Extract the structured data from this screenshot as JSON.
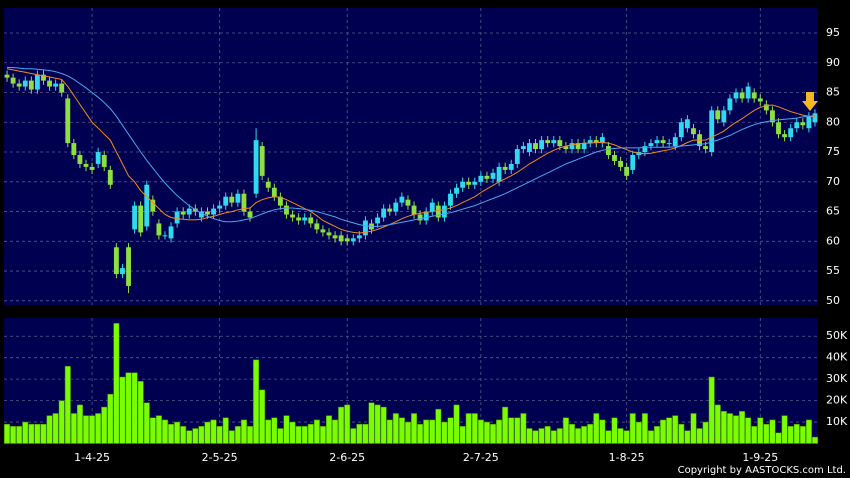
{
  "chart_data": [
    {
      "type": "candlestick",
      "xlim": [
        -0.5,
        133.5
      ],
      "ylim": [
        49.3,
        99.2
      ],
      "yticks": [
        50,
        55,
        60,
        65,
        70,
        75,
        80,
        85,
        90,
        95
      ],
      "grid": true,
      "up_color": "#30d8f0",
      "down_color": "#8ee040",
      "values": [
        [
          88,
          88.7,
          86.8,
          87.5
        ],
        [
          87.5,
          88.2,
          85.8,
          86.5
        ],
        [
          86.5,
          87.2,
          85.3,
          86
        ],
        [
          86,
          87.7,
          85.3,
          87
        ],
        [
          87,
          87.7,
          84.8,
          85.5
        ],
        [
          85.5,
          88.7,
          84.8,
          88
        ],
        [
          88,
          88.7,
          86.3,
          87
        ],
        [
          87,
          87.7,
          85.3,
          86
        ],
        [
          86,
          87.2,
          85.3,
          86.5
        ],
        [
          86.5,
          87.2,
          84.3,
          85
        ],
        [
          84,
          84.7,
          75.8,
          76.5
        ],
        [
          76.5,
          77.2,
          73.8,
          74.5
        ],
        [
          74.5,
          75.2,
          72.3,
          73
        ],
        [
          73,
          73.7,
          71.8,
          72.5
        ],
        [
          72.5,
          73.2,
          71.3,
          72
        ],
        [
          73,
          75.7,
          72.3,
          75
        ],
        [
          74.5,
          75.2,
          71.8,
          72.5
        ],
        [
          72,
          72.7,
          68.8,
          69.5
        ],
        [
          59,
          59.7,
          53.8,
          54.5
        ],
        [
          54.5,
          56.2,
          53.8,
          55.5
        ],
        [
          59,
          59.7,
          51.3,
          52.5
        ],
        [
          62,
          66.7,
          61.3,
          66
        ],
        [
          66,
          66.7,
          60.8,
          61.5
        ],
        [
          62.5,
          70.2,
          61.8,
          69.5
        ],
        [
          67,
          67.7,
          64.3,
          65
        ],
        [
          63,
          63.7,
          60.3,
          61
        ],
        [
          61,
          61.7,
          60.3,
          61
        ],
        [
          60.5,
          63.2,
          59.8,
          62.5
        ],
        [
          63,
          65.7,
          62.3,
          65
        ],
        [
          65,
          65.7,
          63.8,
          64.5
        ],
        [
          64.5,
          66.2,
          63.8,
          65.5
        ],
        [
          65.5,
          66.2,
          64.3,
          65
        ],
        [
          64,
          65.7,
          63.3,
          65
        ],
        [
          65,
          65.7,
          63.8,
          64.5
        ],
        [
          64.5,
          66.2,
          63.8,
          65.5
        ],
        [
          65.5,
          66.7,
          64.8,
          66
        ],
        [
          66,
          68.2,
          65.3,
          67.5
        ],
        [
          67.5,
          68.2,
          65.8,
          66.5
        ],
        [
          66.5,
          68.7,
          65.8,
          68
        ],
        [
          68,
          68.7,
          64.3,
          65
        ],
        [
          65,
          65.7,
          63.3,
          64
        ],
        [
          68,
          79,
          67.3,
          77
        ],
        [
          76,
          76.7,
          70.3,
          71
        ],
        [
          70,
          70.7,
          68.3,
          69
        ],
        [
          69,
          69.7,
          66.8,
          67.5
        ],
        [
          67.5,
          68.2,
          65.3,
          66
        ],
        [
          66,
          66.7,
          63.8,
          64.5
        ],
        [
          64.5,
          65.2,
          63.3,
          64
        ],
        [
          64,
          64.7,
          62.8,
          63.5
        ],
        [
          63.5,
          64.7,
          62.8,
          64
        ],
        [
          64,
          64.7,
          62.3,
          63
        ],
        [
          63,
          63.7,
          61.3,
          62
        ],
        [
          62,
          62.7,
          60.8,
          61.5
        ],
        [
          61.5,
          62.2,
          60.3,
          61
        ],
        [
          61,
          61.7,
          59.8,
          60.5
        ],
        [
          61,
          61.7,
          59.3,
          60
        ],
        [
          60.5,
          61.2,
          59.3,
          60
        ],
        [
          60,
          61.2,
          59.3,
          60.5
        ],
        [
          60.5,
          61.7,
          59.8,
          61
        ],
        [
          61,
          64.2,
          60.3,
          63.5
        ],
        [
          63,
          63.7,
          61.3,
          62
        ],
        [
          63,
          64.7,
          62.3,
          64
        ],
        [
          64,
          66.2,
          63.3,
          65.5
        ],
        [
          65.5,
          66.2,
          64.3,
          65
        ],
        [
          65,
          67.2,
          64.3,
          66.5
        ],
        [
          66.5,
          68.2,
          65.8,
          67.5
        ],
        [
          67,
          67.7,
          65.3,
          66
        ],
        [
          66,
          66.7,
          63.8,
          64.5
        ],
        [
          64.5,
          65.2,
          62.8,
          63.5
        ],
        [
          63.5,
          65.7,
          62.8,
          65
        ],
        [
          65,
          67.2,
          64.3,
          66.5
        ],
        [
          66,
          66.7,
          63.3,
          64
        ],
        [
          64,
          66.7,
          63.3,
          66
        ],
        [
          66,
          68.7,
          65.3,
          68
        ],
        [
          68,
          69.7,
          67.3,
          69
        ],
        [
          69,
          70.7,
          68.3,
          70
        ],
        [
          70,
          70.7,
          68.8,
          69.5
        ],
        [
          69.5,
          70.7,
          68.8,
          70
        ],
        [
          70,
          71.7,
          69.3,
          71
        ],
        [
          71,
          71.7,
          69.8,
          70.5
        ],
        [
          70.5,
          72.2,
          69.8,
          71.5
        ],
        [
          70,
          73.2,
          69.3,
          72.5
        ],
        [
          72.5,
          73.2,
          71.3,
          72
        ],
        [
          72,
          73.7,
          71.3,
          73
        ],
        [
          73,
          76.2,
          72.3,
          75.5
        ],
        [
          75.5,
          76.7,
          74.8,
          76
        ],
        [
          75,
          77.2,
          74.3,
          76.5
        ],
        [
          76.5,
          77.2,
          74.8,
          75.5
        ],
        [
          75.5,
          77.7,
          74.8,
          77
        ],
        [
          77,
          77.7,
          75.8,
          76.5
        ],
        [
          76.5,
          77.7,
          75.8,
          77
        ],
        [
          77,
          77.7,
          75.3,
          76
        ],
        [
          76,
          76.7,
          74.8,
          75.5
        ],
        [
          75.5,
          77.2,
          74.8,
          76.5
        ],
        [
          76.5,
          77.2,
          74.8,
          75.5
        ],
        [
          75.5,
          77.2,
          74.8,
          76.5
        ],
        [
          76.5,
          77.7,
          75.8,
          77
        ],
        [
          77,
          77.7,
          75.8,
          76.5
        ],
        [
          76.5,
          78.2,
          75.8,
          77.5
        ],
        [
          76,
          76.7,
          73.8,
          74.5
        ],
        [
          74.5,
          75.2,
          72.8,
          73.5
        ],
        [
          73.5,
          74.2,
          71.8,
          72.5
        ],
        [
          72.5,
          73.2,
          70.3,
          71
        ],
        [
          72,
          75.2,
          71.3,
          74.5
        ],
        [
          74.5,
          75.7,
          73.8,
          75
        ],
        [
          75,
          76.7,
          74.3,
          76
        ],
        [
          76,
          77.2,
          75.3,
          76.5
        ],
        [
          76.5,
          77.7,
          75.8,
          77
        ],
        [
          77,
          77.7,
          75.8,
          76.5
        ],
        [
          76.5,
          77.2,
          75.8,
          76.5
        ],
        [
          76,
          78.2,
          75.3,
          77.5
        ],
        [
          77.5,
          80.7,
          76.8,
          80
        ],
        [
          79,
          81.2,
          78.3,
          80.5
        ],
        [
          79,
          79.7,
          77.3,
          78
        ],
        [
          78,
          78.7,
          75.3,
          76
        ],
        [
          76,
          76.7,
          74.8,
          75.5
        ],
        [
          75,
          82.7,
          74.3,
          82
        ],
        [
          82,
          82.7,
          79.8,
          80.5
        ],
        [
          80,
          82.7,
          79.3,
          82
        ],
        [
          82,
          84.7,
          81.3,
          84
        ],
        [
          84,
          85.7,
          83.3,
          85
        ],
        [
          85,
          85.7,
          83.3,
          84
        ],
        [
          84,
          86.7,
          83.3,
          86
        ],
        [
          85,
          85.7,
          83.3,
          84
        ],
        [
          84,
          84.7,
          82.8,
          83.5
        ],
        [
          83,
          83.7,
          81.3,
          82
        ],
        [
          82,
          82.7,
          79.3,
          80
        ],
        [
          80,
          80.7,
          77.3,
          78
        ],
        [
          78,
          78.7,
          76.8,
          77.5
        ],
        [
          77.5,
          79.7,
          76.8,
          79
        ],
        [
          79,
          80.7,
          78.3,
          80
        ],
        [
          80,
          80.7,
          78.8,
          79.5
        ],
        [
          79,
          81.7,
          78.3,
          81
        ],
        [
          80,
          82.2,
          79.3,
          81.5
        ]
      ],
      "lines": [
        {
          "color": "#f08a24",
          "values": [
            89,
            88.8,
            88.6,
            88.4,
            88.2,
            88,
            87.8,
            87.6,
            87.4,
            87.2,
            86,
            84.5,
            83,
            81.5,
            80,
            79,
            78,
            77,
            75,
            73,
            71,
            70,
            68.5,
            67.5,
            66.5,
            65.5,
            64.5,
            64,
            63.8,
            63.7,
            63.6,
            63.6,
            63.7,
            64,
            64.2,
            64.5,
            64.8,
            65,
            65.3,
            65.5,
            65.6,
            66.5,
            67,
            67.3,
            67.5,
            67.4,
            67,
            66.5,
            66,
            65.5,
            65,
            64.3,
            63.5,
            63,
            62.5,
            62,
            61.7,
            61.5,
            61.4,
            61.5,
            61.7,
            62,
            62.4,
            62.8,
            63.3,
            63.8,
            64.2,
            64.5,
            64.7,
            64.9,
            65,
            65.2,
            65.3,
            65.6,
            66,
            66.5,
            67,
            67.5,
            68.2,
            68.8,
            69.4,
            70,
            70.5,
            71,
            71.6,
            72.3,
            73,
            73.6,
            74.2,
            74.8,
            75.3,
            75.7,
            76,
            76.2,
            76.4,
            76.5,
            76.5,
            76.6,
            76.6,
            76.5,
            76.2,
            75.8,
            75.4,
            75,
            74.8,
            74.7,
            74.8,
            75,
            75.2,
            75.4,
            75.7,
            76.1,
            76.6,
            77,
            77,
            77,
            77.5,
            78,
            78.5,
            79.3,
            80,
            80.6,
            81.3,
            82,
            82.5,
            82.8,
            82.9,
            82.6,
            82.2,
            81.8,
            81.5,
            81.2,
            81,
            80.9
          ]
        },
        {
          "color": "#4aa8f0",
          "values": [
            89.2,
            89.2,
            89.1,
            89,
            89,
            88.9,
            88.8,
            88.7,
            88.5,
            88.2,
            87.8,
            87.2,
            86.5,
            85.8,
            85,
            84.2,
            83.3,
            82.3,
            81,
            79.5,
            78,
            76.5,
            75,
            73.6,
            72.3,
            71,
            69.8,
            68.7,
            67.7,
            66.8,
            66,
            65.3,
            64.7,
            64.2,
            63.8,
            63.5,
            63.3,
            63.3,
            63.4,
            63.6,
            63.8,
            64.2,
            64.6,
            65,
            65.3,
            65.5,
            65.6,
            65.6,
            65.5,
            65.4,
            65.2,
            65,
            64.7,
            64.4,
            64.1,
            63.7,
            63.4,
            63.1,
            62.8,
            62.6,
            62.5,
            62.5,
            62.6,
            62.8,
            63,
            63.2,
            63.4,
            63.6,
            63.8,
            64,
            64.2,
            64.4,
            64.6,
            64.8,
            65.1,
            65.4,
            65.7,
            66,
            66.4,
            66.8,
            67.2,
            67.6,
            68,
            68.5,
            69,
            69.5,
            70,
            70.5,
            71,
            71.5,
            72,
            72.5,
            73,
            73.4,
            73.8,
            74.2,
            74.6,
            75,
            75.3,
            75.5,
            75.6,
            75.7,
            75.7,
            75.7,
            75.7,
            75.8,
            75.8,
            75.8,
            75.8,
            75.8,
            75.9,
            76,
            76.1,
            76.2,
            76.3,
            76.4,
            76.7,
            77,
            77.4,
            77.8,
            78.3,
            78.8,
            79.2,
            79.6,
            79.9,
            80.1,
            80.3,
            80.4,
            80.5,
            80.6,
            80.7,
            80.9,
            81,
            81.1
          ]
        }
      ]
    },
    {
      "type": "bar",
      "color": "#7cfc00",
      "xlim": [
        -0.5,
        133.5
      ],
      "ylim": [
        0,
        58500
      ],
      "grid": true,
      "yticks": [
        {
          "value": 10000,
          "label": "10K"
        },
        {
          "value": 20000,
          "label": "20K"
        },
        {
          "value": 30000,
          "label": "30K"
        },
        {
          "value": 40000,
          "label": "40K"
        },
        {
          "value": 50000,
          "label": "50K"
        }
      ],
      "xticks": [
        {
          "value": 14,
          "label": "1-4-25"
        },
        {
          "value": 35,
          "label": "2-5-25"
        },
        {
          "value": 56,
          "label": "2-6-25"
        },
        {
          "value": 78,
          "label": "2-7-25"
        },
        {
          "value": 102,
          "label": "1-8-25"
        },
        {
          "value": 124,
          "label": "1-9-25"
        }
      ],
      "values": [
        9000,
        8000,
        8000,
        10000,
        9000,
        9000,
        9000,
        13000,
        14000,
        20000,
        36000,
        14000,
        18000,
        13000,
        13000,
        14000,
        17000,
        23000,
        56000,
        31000,
        33000,
        33000,
        29000,
        19000,
        12000,
        13000,
        11000,
        9000,
        10000,
        8000,
        6000,
        7000,
        8000,
        10000,
        11000,
        8000,
        12000,
        6000,
        8000,
        11000,
        8000,
        39000,
        25000,
        11000,
        12000,
        7000,
        13000,
        10000,
        8000,
        8000,
        9000,
        11000,
        8000,
        13000,
        11000,
        17000,
        18000,
        7000,
        9000,
        9000,
        19000,
        18000,
        17000,
        11000,
        14000,
        12000,
        10000,
        14000,
        9000,
        11000,
        11000,
        16000,
        10000,
        12000,
        18000,
        8000,
        14000,
        14000,
        11000,
        10000,
        9000,
        11000,
        17000,
        12000,
        12000,
        14000,
        7000,
        6000,
        7000,
        8000,
        6000,
        7000,
        12000,
        9000,
        7000,
        8000,
        9000,
        14000,
        11000,
        6000,
        12000,
        7000,
        6000,
        14000,
        10000,
        14000,
        6000,
        8000,
        11000,
        12000,
        13000,
        9000,
        6000,
        14000,
        7000,
        10000,
        31000,
        18000,
        15000,
        14000,
        13000,
        15000,
        12000,
        8000,
        12000,
        9000,
        11000,
        5000,
        13000,
        8000,
        9000,
        8000,
        11000,
        3000
      ]
    }
  ],
  "copyright": "Copyright by AASTOCKS.com Ltd."
}
